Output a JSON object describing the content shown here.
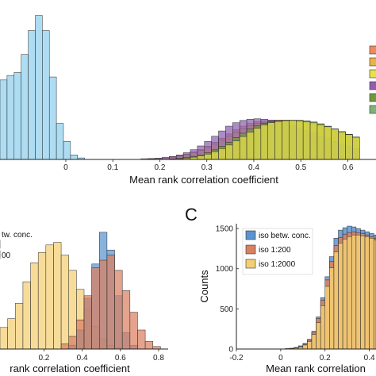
{
  "chart_data": [
    {
      "id": "top",
      "type": "bar",
      "xlabel": "Mean rank correlation coefficient",
      "xlim": [
        -0.14,
        0.66
      ],
      "ylim": [
        0,
        1
      ],
      "xticks": [
        0,
        0.1,
        0.2,
        0.3,
        0.4,
        0.5,
        0.6
      ],
      "xtick_labels": [
        "0",
        "0.1",
        "0.2",
        "0.3",
        "0.4",
        "0.5",
        "0.6"
      ],
      "legend_placement": "top-right",
      "legend_colors": [
        "#f08a5d",
        "#e8b34a",
        "#e7e24a",
        "#8e5fb0",
        "#6f9a3a",
        "#7db27a"
      ],
      "bin_start": -0.14,
      "bin_width": 0.015,
      "series": [
        {
          "color": "#8fd0ee",
          "values": [
            0.53,
            0.56,
            0.58,
            0.7,
            0.86,
            0.96,
            0.86,
            0.55,
            0.24,
            0.12,
            0.03,
            0.01
          ]
        },
        {
          "color": "#f08a5d",
          "values": [
            0,
            0,
            0,
            0,
            0,
            0,
            0,
            0,
            0,
            0,
            0,
            0,
            0,
            0,
            0,
            0,
            0,
            0,
            0,
            0,
            0.005,
            0.006,
            0.008,
            0.012,
            0.018,
            0.025,
            0.036,
            0.05,
            0.066,
            0.088,
            0.114,
            0.142,
            0.17,
            0.198,
            0.222,
            0.24,
            0.252,
            0.257,
            0.262,
            0.263,
            0.262,
            0.258,
            0.252,
            0.245,
            0.236,
            0.224,
            0.21,
            0.195,
            0.178,
            0.16,
            0.142
          ]
        },
        {
          "color": "#e8b34a",
          "values": [
            0,
            0,
            0,
            0,
            0,
            0,
            0,
            0,
            0,
            0,
            0,
            0,
            0,
            0,
            0,
            0,
            0,
            0,
            0,
            0,
            0,
            0.004,
            0.006,
            0.01,
            0.015,
            0.022,
            0.032,
            0.045,
            0.06,
            0.08,
            0.103,
            0.128,
            0.155,
            0.182,
            0.206,
            0.225,
            0.24,
            0.248,
            0.254,
            0.257,
            0.258,
            0.256,
            0.252,
            0.246,
            0.238,
            0.228,
            0.216,
            0.202,
            0.186,
            0.168,
            0.15
          ]
        },
        {
          "color": "#8e5fb0",
          "values": [
            0,
            0,
            0,
            0,
            0,
            0,
            0,
            0,
            0,
            0,
            0,
            0,
            0,
            0,
            0,
            0,
            0,
            0,
            0,
            0,
            0,
            0.005,
            0.008,
            0.013,
            0.02,
            0.03,
            0.045,
            0.065,
            0.09,
            0.12,
            0.155,
            0.19,
            0.222,
            0.245,
            0.26,
            0.268,
            0.271,
            0.268,
            0.262,
            0.252,
            0.24,
            0.226,
            0.21,
            0.193,
            0.175,
            0.157,
            0.138,
            0.12,
            0.103,
            0.087,
            0.072
          ]
        },
        {
          "color": "#6f9a3a",
          "values": [
            0,
            0,
            0,
            0,
            0,
            0,
            0,
            0,
            0,
            0,
            0,
            0,
            0,
            0,
            0,
            0,
            0,
            0,
            0,
            0,
            0,
            0,
            0,
            0,
            0.004,
            0.007,
            0.012,
            0.02,
            0.03,
            0.045,
            0.064,
            0.088,
            0.115,
            0.145,
            0.175,
            0.203,
            0.225,
            0.24,
            0.25,
            0.256,
            0.26,
            0.262,
            0.262,
            0.258,
            0.25,
            0.238,
            0.222,
            0.204,
            0.184,
            0.164,
            0.145
          ]
        },
        {
          "color": "#e7e24a",
          "values": [
            0,
            0,
            0,
            0,
            0,
            0,
            0,
            0,
            0,
            0,
            0,
            0,
            0,
            0,
            0,
            0,
            0,
            0,
            0,
            0,
            0,
            0,
            0,
            0,
            0.003,
            0.005,
            0.009,
            0.015,
            0.024,
            0.036,
            0.052,
            0.072,
            0.096,
            0.124,
            0.153,
            0.182,
            0.208,
            0.23,
            0.245,
            0.254,
            0.258,
            0.26,
            0.258,
            0.252,
            0.244,
            0.232,
            0.218,
            0.202,
            0.184,
            0.166,
            0.148
          ]
        }
      ]
    },
    {
      "id": "bottom-left",
      "type": "bar",
      "xlabel": "rank correlation coefficient",
      "xlim": [
        -0.03,
        0.85
      ],
      "ylim": [
        0,
        1
      ],
      "xticks": [
        0.2,
        0.4,
        0.6,
        0.8
      ],
      "xtick_labels": [
        "0.2",
        "0.4",
        "0.6",
        "0.8"
      ],
      "legend_partial": [
        "tw. conc.",
        "00"
      ],
      "bin_start": -0.03,
      "bin_width": 0.04,
      "series": [
        {
          "color": "#f4ce72",
          "values": [
            0.17,
            0.24,
            0.36,
            0.53,
            0.68,
            0.76,
            0.82,
            0.84,
            0.74,
            0.62,
            0.47,
            0.32,
            0.18,
            0.08,
            0.03,
            0.01
          ]
        },
        {
          "color": "#5a93cf",
          "values": [
            0,
            0,
            0,
            0,
            0,
            0,
            0,
            0,
            0,
            0.03,
            0.15,
            0.4,
            0.67,
            0.92,
            0.78,
            0.42,
            0.13,
            0.03,
            0
          ]
        },
        {
          "color": "#d98060",
          "values": [
            0,
            0,
            0,
            0,
            0,
            0,
            0,
            0,
            0.04,
            0.1,
            0.23,
            0.42,
            0.64,
            0.7,
            0.74,
            0.62,
            0.46,
            0.29,
            0.15,
            0.06,
            0.02
          ]
        }
      ]
    },
    {
      "id": "C",
      "type": "bar",
      "panel_letter": "C",
      "ylabel": "Counts",
      "xlabel": "Mean rank correlation",
      "xlim": [
        -0.2,
        0.43
      ],
      "ylim": [
        0,
        1560
      ],
      "xticks": [
        -0.2,
        0,
        0.2,
        0.4
      ],
      "xtick_labels": [
        "-0.2",
        "0",
        "0.2",
        "0.4"
      ],
      "yticks": [
        0,
        500,
        1000,
        1500
      ],
      "ytick_labels": [
        "0",
        "500",
        "1000",
        "1500"
      ],
      "legend_placement": "top-left",
      "bin_start": 0.02,
      "bin_width": 0.02,
      "series": [
        {
          "name": "iso betw. conc.",
          "color": "#5a93cf",
          "values": [
            5,
            10,
            20,
            40,
            70,
            120,
            220,
            400,
            640,
            900,
            1150,
            1380,
            1480,
            1510,
            1530,
            1520,
            1500,
            1480,
            1460,
            1440,
            1420
          ]
        },
        {
          "name": "iso 1:200",
          "color": "#d98060",
          "values": [
            4,
            8,
            15,
            30,
            60,
            110,
            210,
            380,
            610,
            860,
            1090,
            1290,
            1390,
            1430,
            1450,
            1460,
            1450,
            1440,
            1420,
            1400,
            1380
          ]
        },
        {
          "name": "iso 1:2000",
          "color": "#f4ce72",
          "values": [
            3,
            6,
            12,
            25,
            50,
            95,
            180,
            330,
            540,
            780,
            1010,
            1210,
            1320,
            1370,
            1400,
            1420,
            1420,
            1410,
            1400,
            1380,
            1360
          ]
        }
      ]
    }
  ]
}
